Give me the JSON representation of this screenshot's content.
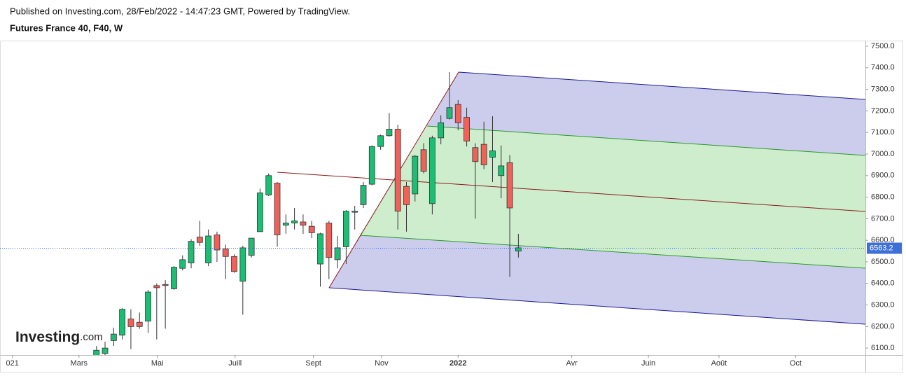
{
  "header": {
    "published": "Published on Investing.com, 28/Feb/2022 - 14:47:23 GMT, Powered by TradingView.",
    "symbol": "Futures France 40, F40, W"
  },
  "logo": {
    "brand": "Investing",
    "suffix": ".com"
  },
  "chart_data": {
    "type": "candlestick",
    "categories": [
      null,
      null,
      null,
      null,
      null,
      null,
      null,
      null,
      null,
      null,
      null,
      null,
      null,
      null,
      null,
      null,
      null,
      null,
      null,
      null,
      null,
      null,
      null,
      null,
      null,
      null,
      null,
      null,
      null,
      null,
      null,
      null,
      null,
      null,
      null,
      null,
      null,
      null,
      null,
      null,
      null,
      null,
      null,
      null,
      null,
      null,
      null,
      null,
      null,
      null
    ],
    "open": [
      6060,
      6075,
      6135,
      6160,
      6235,
      6220,
      6225,
      6390,
      6395,
      6375,
      6470,
      6495,
      6615,
      6495,
      6625,
      6560,
      6525,
      6410,
      6530,
      6640,
      6810,
      6865,
      6670,
      6680,
      6685,
      6665,
      6490,
      6680,
      6510,
      6570,
      6730,
      6765,
      6860,
      7035,
      7085,
      7115,
      6850,
      6815,
      7020,
      6770,
      7075,
      7165,
      7230,
      7170,
      7030,
      7045,
      6985,
      6900,
      6960,
      6550
    ],
    "high": [
      6110,
      6130,
      6195,
      6285,
      6280,
      6265,
      6370,
      6400,
      6415,
      6480,
      6530,
      6605,
      6690,
      6650,
      6640,
      6580,
      6535,
      6575,
      6610,
      6840,
      6910,
      6870,
      6720,
      6750,
      6720,
      6690,
      6635,
      6690,
      6620,
      6740,
      6760,
      6870,
      7040,
      7090,
      7190,
      7135,
      6870,
      6995,
      7050,
      7085,
      7180,
      7380,
      7250,
      7215,
      7050,
      7150,
      7175,
      7040,
      6995,
      6630
    ],
    "low": [
      6040,
      6060,
      6110,
      6140,
      6095,
      6190,
      6170,
      6140,
      6190,
      6370,
      6460,
      6470,
      6575,
      6480,
      6500,
      6420,
      6450,
      6255,
      6520,
      6640,
      6805,
      6570,
      6630,
      6650,
      6630,
      6610,
      6385,
      6420,
      6470,
      6490,
      6650,
      6750,
      6855,
      7020,
      7080,
      6650,
      6640,
      6780,
      6910,
      6720,
      7045,
      7160,
      7110,
      7035,
      6700,
      6930,
      6870,
      6795,
      6430,
      6520
    ],
    "close": [
      6090,
      6100,
      6165,
      6280,
      6200,
      6200,
      6360,
      6380,
      6390,
      6475,
      6510,
      6595,
      6590,
      6620,
      6555,
      6525,
      6455,
      6565,
      6610,
      6820,
      6900,
      6625,
      6680,
      6690,
      6670,
      6635,
      6630,
      6520,
      6565,
      6735,
      6735,
      6855,
      7035,
      7085,
      7115,
      6735,
      6765,
      6990,
      6920,
      7075,
      7145,
      7215,
      7145,
      7060,
      6965,
      6950,
      7015,
      6945,
      6750,
      6565
    ],
    "up_color": "#1dbd74",
    "down_color": "#f0615a",
    "last_price": 6563.2,
    "last_price_color": "#3d6fd8",
    "xlim": [
      -11.2,
      89.3
    ],
    "xticks": [
      {
        "value": -9.76,
        "label": "021"
      },
      {
        "value": -2.03,
        "label": "Mars"
      },
      {
        "value": 7.07,
        "label": "Mai"
      },
      {
        "value": 16.1,
        "label": "Juill"
      },
      {
        "value": 25.2,
        "label": "Sept"
      },
      {
        "value": 33.1,
        "label": "Nov"
      },
      {
        "value": 42.0,
        "label": "2022",
        "bold": true
      },
      {
        "value": 55.2,
        "label": "Avr"
      },
      {
        "value": 64.1,
        "label": "Juin"
      },
      {
        "value": 72.3,
        "label": "Août"
      },
      {
        "value": 81.2,
        "label": "Oct"
      }
    ],
    "ylim": [
      6068,
      7526
    ],
    "yticks": [
      {
        "value": 6100,
        "label": "6100.0"
      },
      {
        "value": 6200,
        "label": "6200.0"
      },
      {
        "value": 6300,
        "label": "6300.0"
      },
      {
        "value": 6400,
        "label": "6400.0"
      },
      {
        "value": 6500,
        "label": "6500.0"
      },
      {
        "value": 6600,
        "label": "6600.0"
      },
      {
        "value": 6700,
        "label": "6700.0"
      },
      {
        "value": 6800,
        "label": "6800.0"
      },
      {
        "value": 6900,
        "label": "6900.0"
      },
      {
        "value": 7000,
        "label": "7000.0"
      },
      {
        "value": 7100,
        "label": "7100.0"
      },
      {
        "value": 7200,
        "label": "7200.0"
      },
      {
        "value": 7300,
        "label": "7300.0"
      },
      {
        "value": 7400,
        "label": "7400.0"
      },
      {
        "value": 7500,
        "label": "7500.0"
      }
    ]
  }
}
